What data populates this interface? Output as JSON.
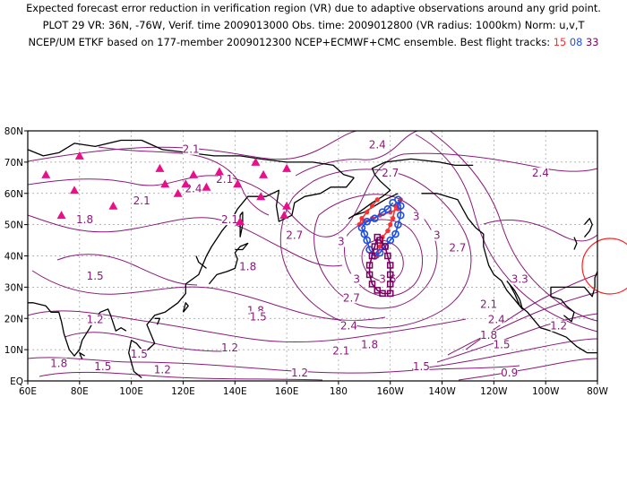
{
  "title": {
    "line1": "Expected forecast error reduction in verification region (VR) due to adaptive observations around any grid point.",
    "line2": "PLOT 29 VR: 36N, -76W, Verif. time 2009013000 Obs. time: 2009012800 (VR radius: 1000km) Norm: u,v,T",
    "line3_prefix": "NCEP/UM ETKF based on 177-member 2009012300 NCEP+ECMWF+CMC ensemble. Best flight tracks:",
    "tracks": [
      {
        "label": "15",
        "color": "#ff3030"
      },
      {
        "label": "08",
        "color": "#1f4fe0"
      },
      {
        "label": "33",
        "color": "#7a0060"
      }
    ]
  },
  "colors": {
    "contour": "#8a1a7a",
    "coast": "#000000",
    "grid": "#9a9a9a",
    "station": "#e8108a",
    "vr_circle": "#ff2020"
  },
  "map": {
    "lon_range": [
      60,
      280
    ],
    "lat_range": [
      0,
      80
    ],
    "lon_ticks": [
      {
        "v": 60,
        "t": "60E"
      },
      {
        "v": 80,
        "t": "80E"
      },
      {
        "v": 100,
        "t": "100E"
      },
      {
        "v": 120,
        "t": "120E"
      },
      {
        "v": 140,
        "t": "140E"
      },
      {
        "v": 160,
        "t": "160E"
      },
      {
        "v": 180,
        "t": "180"
      },
      {
        "v": 200,
        "t": "160W"
      },
      {
        "v": 220,
        "t": "140W"
      },
      {
        "v": 240,
        "t": "120W"
      },
      {
        "v": 260,
        "t": "100W"
      },
      {
        "v": 280,
        "t": "80W"
      }
    ],
    "lat_ticks": [
      {
        "v": 0,
        "t": "EQ"
      },
      {
        "v": 10,
        "t": "10N"
      },
      {
        "v": 20,
        "t": "20N"
      },
      {
        "v": 30,
        "t": "30N"
      },
      {
        "v": 40,
        "t": "40N"
      },
      {
        "v": 50,
        "t": "50N"
      },
      {
        "v": 60,
        "t": "60N"
      },
      {
        "v": 70,
        "t": "70N"
      },
      {
        "v": 80,
        "t": "80N"
      }
    ],
    "verification_region": {
      "lat": 36,
      "lon": -76,
      "radius_km": 1000
    },
    "contour_labels": [
      {
        "t": "2.1",
        "lon": 123,
        "lat": 73.5
      },
      {
        "t": "2.4",
        "lon": 195,
        "lat": 75
      },
      {
        "t": "2.7",
        "lon": 200,
        "lat": 66
      },
      {
        "t": "2.4",
        "lon": 124,
        "lat": 61
      },
      {
        "t": "2.1",
        "lon": 104,
        "lat": 57
      },
      {
        "t": "2.1",
        "lon": 136,
        "lat": 64
      },
      {
        "t": "2.1",
        "lon": 138,
        "lat": 51
      },
      {
        "t": "1.8",
        "lon": 82,
        "lat": 51
      },
      {
        "t": "2.7",
        "lon": 163,
        "lat": 46
      },
      {
        "t": "3",
        "lon": 181,
        "lat": 44
      },
      {
        "t": "3",
        "lon": 210,
        "lat": 52
      },
      {
        "t": "3",
        "lon": 218,
        "lat": 46
      },
      {
        "t": "2.7",
        "lon": 226,
        "lat": 42
      },
      {
        "t": "2.4",
        "lon": 258,
        "lat": 66
      },
      {
        "t": "3.3",
        "lon": 250,
        "lat": 32
      },
      {
        "t": "1.5",
        "lon": 86,
        "lat": 33
      },
      {
        "t": "1.8",
        "lon": 145,
        "lat": 36
      },
      {
        "t": "3",
        "lon": 187,
        "lat": 32
      },
      {
        "t": "3.6",
        "lon": 199,
        "lat": 32
      },
      {
        "t": "2.7",
        "lon": 185,
        "lat": 26
      },
      {
        "t": "2.4",
        "lon": 184,
        "lat": 17
      },
      {
        "t": "2.1",
        "lon": 181,
        "lat": 9
      },
      {
        "t": "1.8",
        "lon": 148,
        "lat": 22
      },
      {
        "t": "1.5",
        "lon": 149,
        "lat": 20
      },
      {
        "t": "1.2",
        "lon": 86,
        "lat": 19
      },
      {
        "t": "1.8",
        "lon": 192,
        "lat": 11
      },
      {
        "t": "1.2",
        "lon": 138,
        "lat": 10
      },
      {
        "t": "1.5",
        "lon": 103,
        "lat": 8
      },
      {
        "t": "1.8",
        "lon": 72,
        "lat": 5
      },
      {
        "t": "1.5",
        "lon": 89,
        "lat": 4
      },
      {
        "t": "1.2",
        "lon": 112,
        "lat": 3
      },
      {
        "t": "1.2",
        "lon": 165,
        "lat": 2
      },
      {
        "t": "1.5",
        "lon": 212,
        "lat": 4
      },
      {
        "t": "2.1",
        "lon": 238,
        "lat": 24
      },
      {
        "t": "2.4",
        "lon": 241,
        "lat": 19
      },
      {
        "t": "1.8",
        "lon": 238,
        "lat": 14
      },
      {
        "t": "1.5",
        "lon": 243,
        "lat": 11
      },
      {
        "t": "1.2",
        "lon": 265,
        "lat": 17
      },
      {
        "t": "0.9",
        "lon": 246,
        "lat": 2
      }
    ],
    "stations": [
      {
        "lon": 67,
        "lat": 66
      },
      {
        "lon": 80,
        "lat": 72
      },
      {
        "lon": 78,
        "lat": 61
      },
      {
        "lon": 73,
        "lat": 53
      },
      {
        "lon": 93,
        "lat": 56
      },
      {
        "lon": 111,
        "lat": 68
      },
      {
        "lon": 113,
        "lat": 63
      },
      {
        "lon": 118,
        "lat": 60
      },
      {
        "lon": 121,
        "lat": 63
      },
      {
        "lon": 124,
        "lat": 66
      },
      {
        "lon": 129,
        "lat": 62
      },
      {
        "lon": 134,
        "lat": 67
      },
      {
        "lon": 141,
        "lat": 63
      },
      {
        "lon": 148,
        "lat": 70
      },
      {
        "lon": 151,
        "lat": 66
      },
      {
        "lon": 150,
        "lat": 59
      },
      {
        "lon": 160,
        "lat": 68
      },
      {
        "lon": 160,
        "lat": 56
      },
      {
        "lon": 159,
        "lat": 53
      },
      {
        "lon": 142,
        "lat": 51
      }
    ],
    "flight_tracks": [
      {
        "id": "15",
        "color": "#ff3030",
        "marker": "dot",
        "points": [
          [
            195,
            58
          ],
          [
            193,
            56
          ],
          [
            191,
            54
          ],
          [
            189,
            52
          ],
          [
            188,
            50
          ],
          [
            190,
            51
          ],
          [
            193,
            52
          ],
          [
            196,
            53
          ],
          [
            200,
            54
          ],
          [
            203,
            55
          ],
          [
            204,
            58
          ],
          [
            202,
            56
          ],
          [
            201,
            52
          ],
          [
            200,
            50
          ],
          [
            199,
            48
          ],
          [
            197,
            46
          ],
          [
            196,
            43
          ],
          [
            195,
            40
          ]
        ]
      },
      {
        "id": "08",
        "color": "#1f4fe0",
        "marker": "circle",
        "points": [
          [
            203,
            58
          ],
          [
            204,
            56
          ],
          [
            204,
            53
          ],
          [
            203,
            50
          ],
          [
            202,
            47
          ],
          [
            200,
            45
          ],
          [
            198,
            43
          ],
          [
            196,
            41
          ],
          [
            194,
            40
          ],
          [
            192,
            42
          ],
          [
            191,
            45
          ],
          [
            190,
            47
          ],
          [
            189,
            49
          ],
          [
            191,
            51
          ],
          [
            194,
            52
          ],
          [
            197,
            54
          ],
          [
            199,
            55
          ],
          [
            201,
            57
          ]
        ]
      },
      {
        "id": "33",
        "color": "#7a0060",
        "marker": "square",
        "points": [
          [
            195,
            46
          ],
          [
            194,
            43
          ],
          [
            193,
            40
          ],
          [
            192,
            37
          ],
          [
            192,
            34
          ],
          [
            193,
            31
          ],
          [
            195,
            29
          ],
          [
            197,
            28
          ],
          [
            200,
            28
          ],
          [
            200,
            31
          ],
          [
            200,
            34
          ],
          [
            200,
            37
          ],
          [
            199,
            40
          ],
          [
            198,
            43
          ],
          [
            196,
            45
          ]
        ]
      }
    ]
  }
}
